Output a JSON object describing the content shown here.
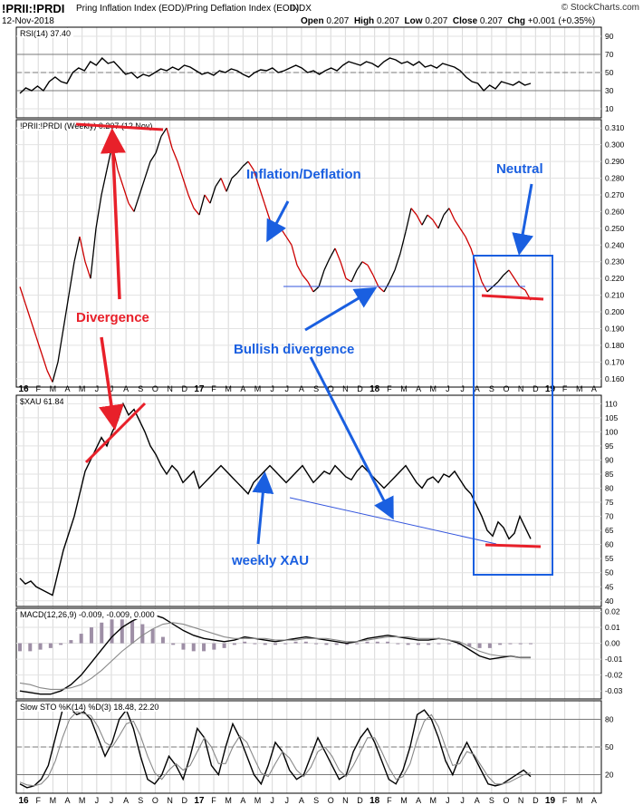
{
  "header": {
    "symbol": "!PRII:!PRDI",
    "name": "Pring Inflation Index (EOD)/Pring Deflation Index (EOD)",
    "exchange": "INDX",
    "date": "12-Nov-2018",
    "quote": {
      "open_label": "Open",
      "open": "0.207",
      "high_label": "High",
      "high": "0.207",
      "low_label": "Low",
      "low": "0.207",
      "close_label": "Close",
      "close": "0.207",
      "chg_label": "Chg",
      "chg": "+0.001 (+0.35%)"
    },
    "brand": "© StockCharts.com"
  },
  "colors": {
    "price_up": "#000000",
    "price_down": "#cc0000",
    "blue_annotation": "#1a5fe0",
    "red_annotation": "#e8202a",
    "macd_hist": "#9e8fa6"
  },
  "chart_data": [
    {
      "type": "line",
      "title": "RSI(14) 37.40",
      "yticks": [
        10,
        30,
        50,
        70,
        90
      ],
      "ylim": [
        0,
        100
      ],
      "reference_lines": [
        30,
        50,
        70
      ],
      "series": [
        {
          "values": [
            27,
            33,
            30,
            35,
            30,
            40,
            45,
            40,
            38,
            50,
            55,
            52,
            62,
            58,
            66,
            60,
            62,
            55,
            48,
            50,
            44,
            48,
            46,
            50,
            54,
            52,
            56,
            53,
            58,
            56,
            52,
            48,
            50,
            47,
            52,
            50,
            54,
            52,
            48,
            45,
            50,
            53,
            52,
            55,
            50,
            52,
            55,
            58,
            55,
            50,
            52,
            48,
            52,
            55,
            52,
            58,
            62,
            60,
            58,
            62,
            60,
            56,
            62,
            66,
            64,
            60,
            62,
            58,
            62,
            56,
            58,
            55,
            60,
            58,
            56,
            52,
            45,
            40,
            38,
            30,
            36,
            32,
            40,
            38,
            36,
            40,
            36,
            38
          ]
        }
      ]
    },
    {
      "type": "line",
      "title": "!PRII:!PRDI (Weekly) 0.207 (12 Nov)",
      "yticks": [
        0.16,
        0.17,
        0.18,
        0.19,
        0.2,
        0.21,
        0.22,
        0.23,
        0.24,
        0.25,
        0.26,
        0.27,
        0.28,
        0.29,
        0.3,
        0.31
      ],
      "ylim": [
        0.155,
        0.315
      ],
      "series": [
        {
          "name": "Inflation/Deflation",
          "values": [
            0.215,
            0.205,
            0.195,
            0.185,
            0.175,
            0.165,
            0.158,
            0.17,
            0.19,
            0.21,
            0.23,
            0.245,
            0.23,
            0.22,
            0.25,
            0.27,
            0.285,
            0.3,
            0.285,
            0.275,
            0.265,
            0.26,
            0.27,
            0.28,
            0.29,
            0.295,
            0.305,
            0.31,
            0.298,
            0.29,
            0.28,
            0.27,
            0.262,
            0.258,
            0.27,
            0.265,
            0.275,
            0.28,
            0.272,
            0.28,
            0.283,
            0.287,
            0.29,
            0.285,
            0.275,
            0.265,
            0.255,
            0.248,
            0.25,
            0.245,
            0.24,
            0.228,
            0.222,
            0.218,
            0.212,
            0.215,
            0.225,
            0.232,
            0.238,
            0.23,
            0.22,
            0.218,
            0.225,
            0.23,
            0.228,
            0.222,
            0.215,
            0.212,
            0.218,
            0.225,
            0.235,
            0.248,
            0.262,
            0.258,
            0.252,
            0.258,
            0.255,
            0.25,
            0.258,
            0.262,
            0.255,
            0.25,
            0.245,
            0.238,
            0.228,
            0.218,
            0.212,
            0.215,
            0.218,
            0.222,
            0.225,
            0.22,
            0.215,
            0.213,
            0.207
          ]
        }
      ],
      "support_value": 0.213
    },
    {
      "type": "line",
      "title": "$XAU 61.84",
      "yticks": [
        40,
        45,
        50,
        55,
        60,
        65,
        70,
        75,
        80,
        85,
        90,
        95,
        100,
        105,
        110
      ],
      "ylim": [
        38,
        113
      ],
      "series": [
        {
          "name": "weekly XAU",
          "values": [
            48,
            46,
            47,
            45,
            44,
            43,
            42,
            50,
            58,
            64,
            70,
            78,
            86,
            90,
            94,
            98,
            95,
            100,
            104,
            110,
            106,
            108,
            104,
            100,
            95,
            92,
            88,
            85,
            88,
            86,
            82,
            84,
            86,
            80,
            82,
            84,
            86,
            88,
            86,
            84,
            82,
            80,
            78,
            82,
            84,
            86,
            88,
            86,
            84,
            82,
            84,
            86,
            88,
            85,
            82,
            84,
            86,
            85,
            88,
            86,
            84,
            83,
            86,
            88,
            86,
            84,
            82,
            80,
            82,
            84,
            86,
            88,
            85,
            82,
            80,
            83,
            84,
            82,
            85,
            84,
            86,
            83,
            80,
            78,
            74,
            70,
            65,
            63,
            68,
            66,
            62,
            64,
            70,
            66,
            62
          ]
        }
      ]
    },
    {
      "type": "line",
      "title": "MACD(12,26,9) -0.009, -0.009, 0.000",
      "yticks": [
        -0.03,
        -0.02,
        -0.01,
        0.0,
        0.01,
        0.02
      ],
      "ylim": [
        -0.035,
        0.022
      ],
      "series": [
        {
          "values": [
            -0.03,
            -0.031,
            -0.032,
            -0.032,
            -0.03,
            -0.026,
            -0.02,
            -0.012,
            -0.004,
            0.004,
            0.01,
            0.014,
            0.017,
            0.018,
            0.016,
            0.012,
            0.008,
            0.005,
            0.003,
            0.002,
            0.001,
            0.002,
            0.004,
            0.003,
            0.002,
            0.001,
            0.002,
            0.003,
            0.004,
            0.003,
            0.002,
            0.001,
            0.0,
            0.001,
            0.003,
            0.004,
            0.005,
            0.004,
            0.003,
            0.002,
            0.002,
            0.003,
            0.002,
            0.0,
            -0.004,
            -0.008,
            -0.01,
            -0.009,
            -0.008,
            -0.009,
            -0.009
          ]
        },
        {
          "values": [
            -0.025,
            -0.026,
            -0.028,
            -0.029,
            -0.029,
            -0.028,
            -0.026,
            -0.022,
            -0.017,
            -0.011,
            -0.005,
            0.0,
            0.005,
            0.009,
            0.012,
            0.013,
            0.012,
            0.01,
            0.008,
            0.006,
            0.004,
            0.003,
            0.003,
            0.003,
            0.003,
            0.002,
            0.002,
            0.002,
            0.003,
            0.003,
            0.003,
            0.002,
            0.001,
            0.001,
            0.002,
            0.003,
            0.004,
            0.004,
            0.004,
            0.003,
            0.003,
            0.003,
            0.002,
            0.001,
            -0.002,
            -0.005,
            -0.007,
            -0.008,
            -0.008,
            -0.009,
            -0.009
          ]
        }
      ],
      "histogram": [
        -0.005,
        -0.005,
        -0.004,
        -0.003,
        -0.001,
        0.002,
        0.006,
        0.01,
        0.013,
        0.015,
        0.015,
        0.014,
        0.012,
        0.009,
        0.004,
        -0.001,
        -0.004,
        -0.005,
        -0.005,
        -0.004,
        -0.003,
        -0.001,
        0.001,
        0.0,
        -0.001,
        -0.001,
        0.0,
        0.001,
        0.001,
        0.0,
        -0.001,
        -0.001,
        -0.001,
        0.0,
        0.001,
        0.001,
        0.001,
        0.0,
        -0.001,
        -0.001,
        -0.001,
        0.0,
        0.0,
        -0.001,
        -0.002,
        -0.003,
        -0.003,
        -0.001,
        0.0,
        0.0,
        0.0
      ]
    },
    {
      "type": "line",
      "title": "Slow STO %K(14) %D(3) 18.48, 22.20",
      "yticks": [
        20,
        50,
        80
      ],
      "ylim": [
        0,
        100
      ],
      "reference_lines": [
        20,
        50,
        80
      ],
      "series": [
        {
          "values": [
            10,
            6,
            8,
            15,
            30,
            60,
            90,
            92,
            85,
            88,
            80,
            60,
            40,
            55,
            80,
            90,
            70,
            40,
            15,
            10,
            20,
            40,
            30,
            15,
            40,
            70,
            60,
            30,
            20,
            50,
            75,
            60,
            40,
            20,
            10,
            30,
            55,
            45,
            25,
            15,
            20,
            40,
            60,
            45,
            30,
            15,
            20,
            45,
            60,
            70,
            55,
            35,
            15,
            10,
            25,
            50,
            85,
            90,
            80,
            60,
            35,
            20,
            40,
            55,
            40,
            25,
            10,
            8,
            10,
            15,
            20,
            25,
            18
          ]
        },
        {
          "values": [
            12,
            9,
            8,
            10,
            18,
            35,
            60,
            80,
            88,
            86,
            84,
            72,
            55,
            50,
            62,
            75,
            78,
            62,
            40,
            22,
            15,
            25,
            32,
            25,
            30,
            45,
            60,
            50,
            32,
            32,
            50,
            62,
            55,
            38,
            22,
            18,
            32,
            45,
            38,
            25,
            18,
            28,
            45,
            50,
            40,
            25,
            18,
            30,
            45,
            60,
            60,
            45,
            28,
            15,
            18,
            32,
            58,
            78,
            85,
            72,
            50,
            30,
            32,
            45,
            42,
            30,
            18,
            10,
            10,
            12,
            16,
            20,
            22
          ]
        }
      ]
    }
  ],
  "x_axis": {
    "labels": [
      "16",
      "F",
      "M",
      "A",
      "M",
      "J",
      "J",
      "A",
      "S",
      "O",
      "N",
      "D",
      "17",
      "F",
      "M",
      "A",
      "M",
      "J",
      "J",
      "A",
      "S",
      "O",
      "N",
      "D",
      "18",
      "F",
      "M",
      "A",
      "M",
      "J",
      "J",
      "A",
      "S",
      "O",
      "N",
      "D",
      "19",
      "F",
      "M",
      "A"
    ]
  },
  "annotations": {
    "inflation_deflation": "Inflation/Deflation",
    "neutral": "Neutral",
    "divergence": "Divergence",
    "bullish_divergence": "Bullish divergence",
    "weekly_xau": "weekly XAU"
  }
}
